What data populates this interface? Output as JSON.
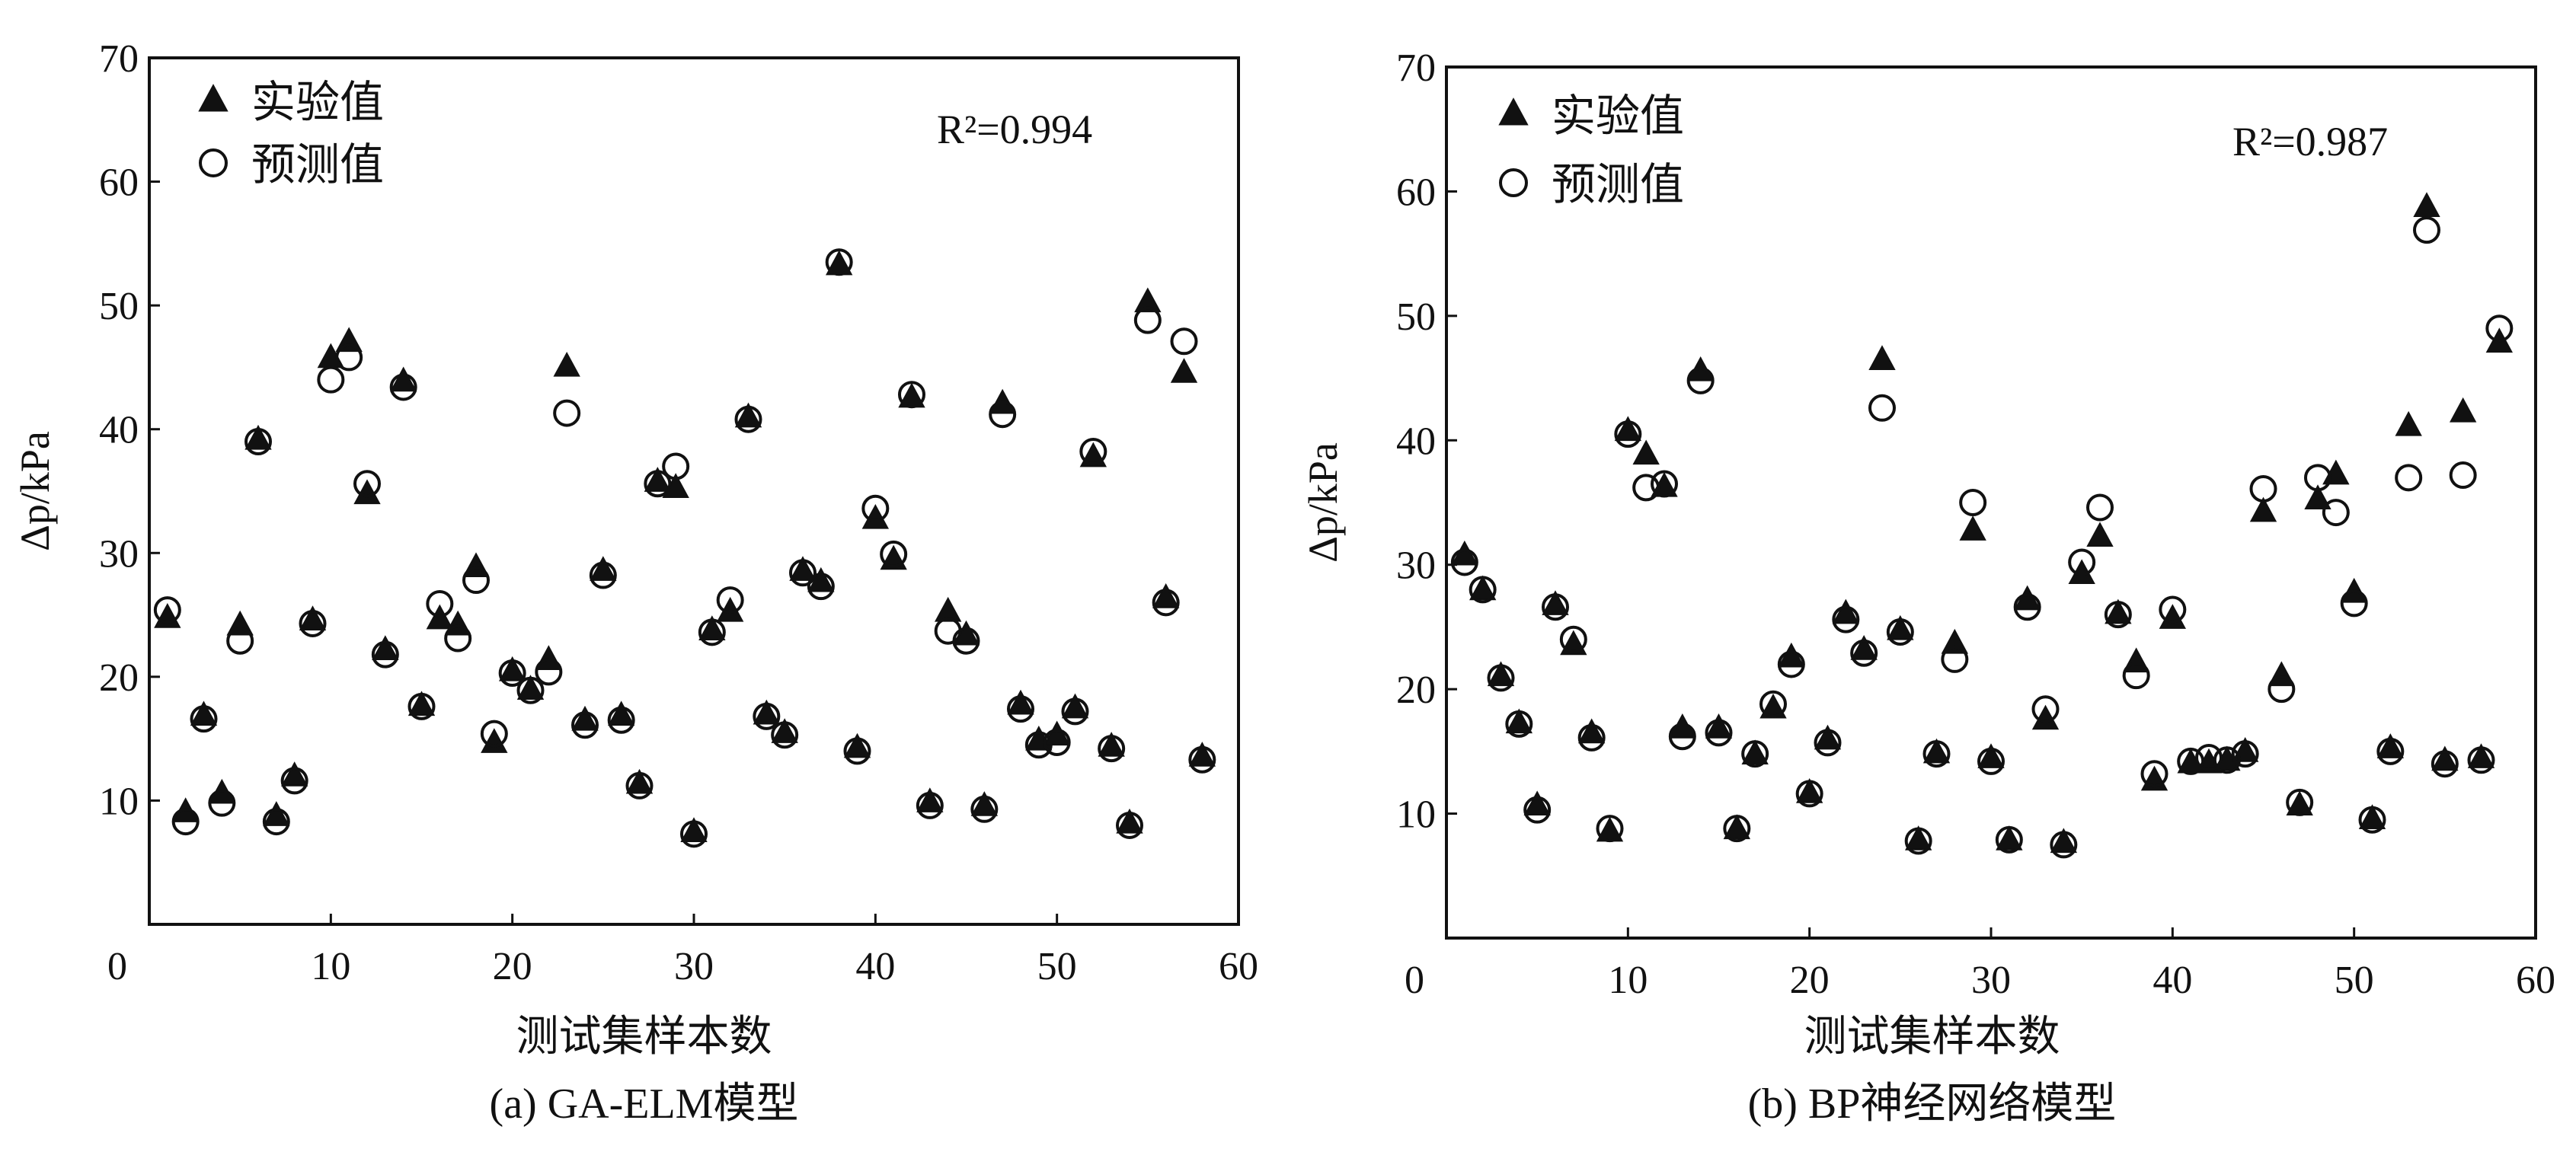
{
  "chart_data": [
    {
      "type": "scatter",
      "subtitle": "(a) GA-ELM模型",
      "xlabel": "测试集样本数",
      "ylabel": "Δp/kPa",
      "xlim": [
        0,
        60
      ],
      "ylim": [
        0,
        70
      ],
      "x_ticks": [
        0,
        10,
        20,
        30,
        40,
        50,
        60
      ],
      "y_ticks": [
        10,
        20,
        30,
        40,
        50,
        60,
        70
      ],
      "annotation": "R²=0.994",
      "grid": false,
      "legend_position": "top-left",
      "x": [
        1,
        2,
        3,
        4,
        5,
        6,
        7,
        8,
        9,
        10,
        11,
        12,
        13,
        14,
        15,
        16,
        17,
        18,
        19,
        20,
        21,
        22,
        23,
        24,
        25,
        26,
        27,
        28,
        29,
        30,
        31,
        32,
        33,
        34,
        35,
        36,
        37,
        38,
        39,
        40,
        41,
        42,
        43,
        44,
        45,
        46,
        47,
        48,
        49,
        50,
        51,
        52,
        53,
        54,
        55,
        56,
        57,
        58
      ],
      "series": [
        {
          "name": "实验值",
          "marker": "filled-triangle",
          "color": "#111111",
          "values": [
            24.5,
            8.8,
            16.6,
            10.3,
            23.9,
            38.9,
            8.5,
            11.7,
            24.3,
            45.5,
            46.8,
            34.5,
            21.9,
            43.6,
            17.4,
            24.4,
            23.9,
            28.6,
            14.4,
            20.2,
            18.7,
            21.1,
            44.8,
            16.2,
            28.3,
            16.6,
            11.1,
            35.5,
            35.0,
            7.2,
            23.5,
            25.0,
            40.7,
            16.7,
            15.2,
            28.3,
            27.4,
            53.0,
            14.0,
            32.5,
            29.2,
            42.3,
            9.6,
            25.0,
            23.1,
            9.3,
            41.8,
            17.5,
            14.6,
            15.0,
            17.2,
            37.5,
            14.1,
            7.9,
            50.0,
            26.1,
            44.3,
            13.3
          ]
        },
        {
          "name": "预测值",
          "marker": "open-circle",
          "color": "#111111",
          "values": [
            25.4,
            8.3,
            16.6,
            9.8,
            22.9,
            39.0,
            8.3,
            11.6,
            24.3,
            44.0,
            45.8,
            35.6,
            21.8,
            43.4,
            17.6,
            25.9,
            23.1,
            27.8,
            15.4,
            20.3,
            18.9,
            20.4,
            41.3,
            16.1,
            28.2,
            16.5,
            11.2,
            35.6,
            37.0,
            7.3,
            23.6,
            26.2,
            40.8,
            16.8,
            15.3,
            28.4,
            27.3,
            53.5,
            14.0,
            33.6,
            29.9,
            42.8,
            9.6,
            23.7,
            22.9,
            9.3,
            41.2,
            17.4,
            14.5,
            14.7,
            17.2,
            38.2,
            14.2,
            8.0,
            48.8,
            26.0,
            47.1,
            13.3
          ]
        }
      ]
    },
    {
      "type": "scatter",
      "subtitle": "(b) BP神经网络模型",
      "xlabel": "测试集样本数",
      "ylabel": "Δp/kPa",
      "xlim": [
        0,
        60
      ],
      "ylim": [
        0,
        70
      ],
      "x_ticks": [
        0,
        10,
        20,
        30,
        40,
        50,
        60
      ],
      "y_ticks": [
        10,
        20,
        30,
        40,
        50,
        60,
        70
      ],
      "annotation": "R²=0.987",
      "grid": false,
      "legend_position": "top-left",
      "x": [
        1,
        2,
        3,
        4,
        5,
        6,
        7,
        8,
        9,
        10,
        11,
        12,
        13,
        14,
        15,
        16,
        17,
        18,
        19,
        20,
        21,
        22,
        23,
        24,
        25,
        26,
        27,
        28,
        29,
        30,
        31,
        32,
        33,
        34,
        35,
        36,
        37,
        38,
        39,
        40,
        41,
        42,
        43,
        44,
        45,
        46,
        47,
        48,
        49,
        50,
        51,
        52,
        53,
        54,
        55,
        56,
        57,
        58
      ],
      "series": [
        {
          "name": "实验值",
          "marker": "filled-triangle",
          "color": "#111111",
          "values": [
            30.5,
            27.7,
            20.8,
            17.0,
            10.4,
            26.5,
            23.3,
            16.2,
            8.3,
            40.5,
            38.6,
            36.0,
            16.6,
            45.3,
            16.6,
            8.5,
            14.5,
            18.2,
            22.3,
            11.4,
            15.7,
            25.8,
            22.9,
            46.2,
            24.5,
            7.6,
            14.6,
            23.4,
            32.5,
            14.2,
            7.6,
            26.9,
            17.3,
            7.4,
            29.0,
            32.0,
            25.8,
            21.9,
            12.4,
            25.4,
            13.8,
            13.8,
            14.0,
            14.7,
            34.0,
            20.8,
            10.4,
            35.0,
            37.0,
            27.5,
            9.3,
            15.0,
            40.9,
            58.5,
            14.0,
            42.0,
            14.2,
            47.6
          ]
        },
        {
          "name": "预测值",
          "marker": "open-circle",
          "color": "#111111",
          "values": [
            30.2,
            28.0,
            20.9,
            17.2,
            10.3,
            26.6,
            24.0,
            16.1,
            8.8,
            40.5,
            36.2,
            36.5,
            16.2,
            44.8,
            16.5,
            8.8,
            14.8,
            18.8,
            22.0,
            11.6,
            15.7,
            25.6,
            22.9,
            42.6,
            24.6,
            7.8,
            14.8,
            22.4,
            35.0,
            14.2,
            7.9,
            26.6,
            18.4,
            7.5,
            30.2,
            34.6,
            26.0,
            21.1,
            13.2,
            26.4,
            14.2,
            14.5,
            14.3,
            14.8,
            36.1,
            20.0,
            10.9,
            37.0,
            34.2,
            26.9,
            9.5,
            15.0,
            37.0,
            56.9,
            14.0,
            37.2,
            14.3,
            49.0
          ]
        }
      ]
    }
  ]
}
